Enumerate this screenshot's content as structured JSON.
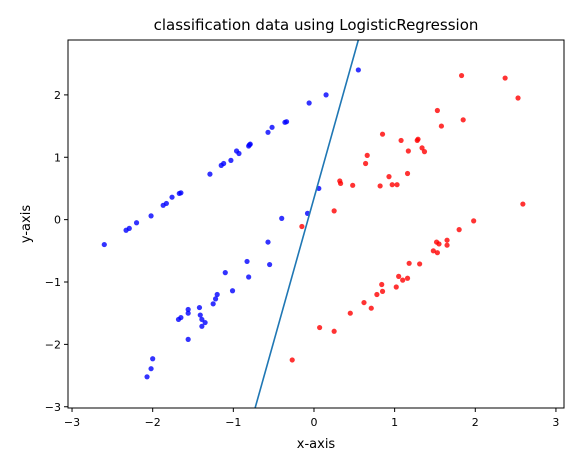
{
  "chart_data": {
    "type": "scatter",
    "title": "classification data using LogisticRegression",
    "xlabel": "x-axis",
    "ylabel": "y-axis",
    "xlim": [
      -3.05,
      3.1
    ],
    "ylim": [
      -3.02,
      2.88
    ],
    "xticks": [
      -3,
      -2,
      -1,
      0,
      1,
      2,
      3
    ],
    "yticks": [
      -3,
      -2,
      -1,
      0,
      1,
      2
    ],
    "xtick_labels": [
      "−3",
      "−2",
      "−1",
      "0",
      "1",
      "2",
      "3"
    ],
    "ytick_labels": [
      "−3",
      "−2",
      "−1",
      "0",
      "1",
      "2"
    ],
    "grid": false,
    "series": [
      {
        "color": "#0000ff",
        "points": [
          [
            -2.6,
            -0.4
          ],
          [
            -2.33,
            -0.17
          ],
          [
            -2.29,
            -0.14
          ],
          [
            -2.2,
            -0.05
          ],
          [
            -2.02,
            0.06
          ],
          [
            -1.87,
            0.23
          ],
          [
            -1.83,
            0.26
          ],
          [
            -1.76,
            0.36
          ],
          [
            -1.67,
            0.42
          ],
          [
            -1.65,
            0.43
          ],
          [
            -1.29,
            0.73
          ],
          [
            -1.15,
            0.87
          ],
          [
            -1.12,
            0.9
          ],
          [
            -1.03,
            0.95
          ],
          [
            -0.96,
            1.1
          ],
          [
            -0.93,
            1.06
          ],
          [
            -0.81,
            1.18
          ],
          [
            -0.8,
            1.2
          ],
          [
            -0.79,
            1.21
          ],
          [
            -0.57,
            1.4
          ],
          [
            -0.52,
            1.48
          ],
          [
            -0.36,
            1.56
          ],
          [
            -0.34,
            1.57
          ],
          [
            -0.06,
            1.87
          ],
          [
            0.15,
            2.0
          ],
          [
            0.55,
            2.4
          ],
          [
            0.06,
            0.5
          ],
          [
            -0.08,
            0.1
          ],
          [
            -0.4,
            0.02
          ],
          [
            -0.57,
            -0.36
          ],
          [
            -0.55,
            -0.72
          ],
          [
            -0.83,
            -0.67
          ],
          [
            -1.1,
            -0.85
          ],
          [
            -0.81,
            -0.92
          ],
          [
            -1.01,
            -1.14
          ],
          [
            -1.2,
            -1.2
          ],
          [
            -1.22,
            -1.27
          ],
          [
            -1.25,
            -1.35
          ],
          [
            -1.42,
            -1.41
          ],
          [
            -1.56,
            -1.44
          ],
          [
            -1.56,
            -1.5
          ],
          [
            -1.41,
            -1.53
          ],
          [
            -1.39,
            -1.6
          ],
          [
            -1.35,
            -1.65
          ],
          [
            -1.68,
            -1.6
          ],
          [
            -1.65,
            -1.57
          ],
          [
            -1.39,
            -1.71
          ],
          [
            -1.56,
            -1.92
          ],
          [
            -2.0,
            -2.23
          ],
          [
            -2.02,
            -2.39
          ],
          [
            -2.07,
            -2.52
          ]
        ]
      },
      {
        "color": "#ff0000",
        "points": [
          [
            1.83,
            2.31
          ],
          [
            2.37,
            2.27
          ],
          [
            2.53,
            1.95
          ],
          [
            1.53,
            1.75
          ],
          [
            1.85,
            1.6
          ],
          [
            1.58,
            1.5
          ],
          [
            0.85,
            1.37
          ],
          [
            1.08,
            1.27
          ],
          [
            1.28,
            1.27
          ],
          [
            1.29,
            1.29
          ],
          [
            1.34,
            1.15
          ],
          [
            1.37,
            1.09
          ],
          [
            1.17,
            1.1
          ],
          [
            0.66,
            1.03
          ],
          [
            0.64,
            0.9
          ],
          [
            0.93,
            0.69
          ],
          [
            1.16,
            0.74
          ],
          [
            0.32,
            0.62
          ],
          [
            0.33,
            0.58
          ],
          [
            0.48,
            0.55
          ],
          [
            0.82,
            0.54
          ],
          [
            0.97,
            0.56
          ],
          [
            1.03,
            0.56
          ],
          [
            0.25,
            0.14
          ],
          [
            2.59,
            0.25
          ],
          [
            1.98,
            -0.02
          ],
          [
            1.8,
            -0.16
          ],
          [
            -0.15,
            -0.11
          ],
          [
            1.65,
            -0.33
          ],
          [
            1.65,
            -0.41
          ],
          [
            1.55,
            -0.39
          ],
          [
            1.52,
            -0.36
          ],
          [
            1.48,
            -0.5
          ],
          [
            1.53,
            -0.53
          ],
          [
            1.18,
            -0.7
          ],
          [
            1.31,
            -0.71
          ],
          [
            1.05,
            -0.91
          ],
          [
            1.1,
            -0.97
          ],
          [
            1.16,
            -0.94
          ],
          [
            0.84,
            -1.04
          ],
          [
            1.02,
            -1.08
          ],
          [
            0.85,
            -1.15
          ],
          [
            0.78,
            -1.2
          ],
          [
            0.71,
            -1.42
          ],
          [
            0.62,
            -1.33
          ],
          [
            0.45,
            -1.5
          ],
          [
            0.07,
            -1.73
          ],
          [
            0.25,
            -1.79
          ],
          [
            -0.27,
            -2.25
          ]
        ]
      }
    ],
    "decision_boundary": {
      "type": "line",
      "color": "#1f77b4",
      "p1": [
        -0.73,
        -3.02
      ],
      "p2": [
        0.55,
        2.88
      ]
    }
  }
}
